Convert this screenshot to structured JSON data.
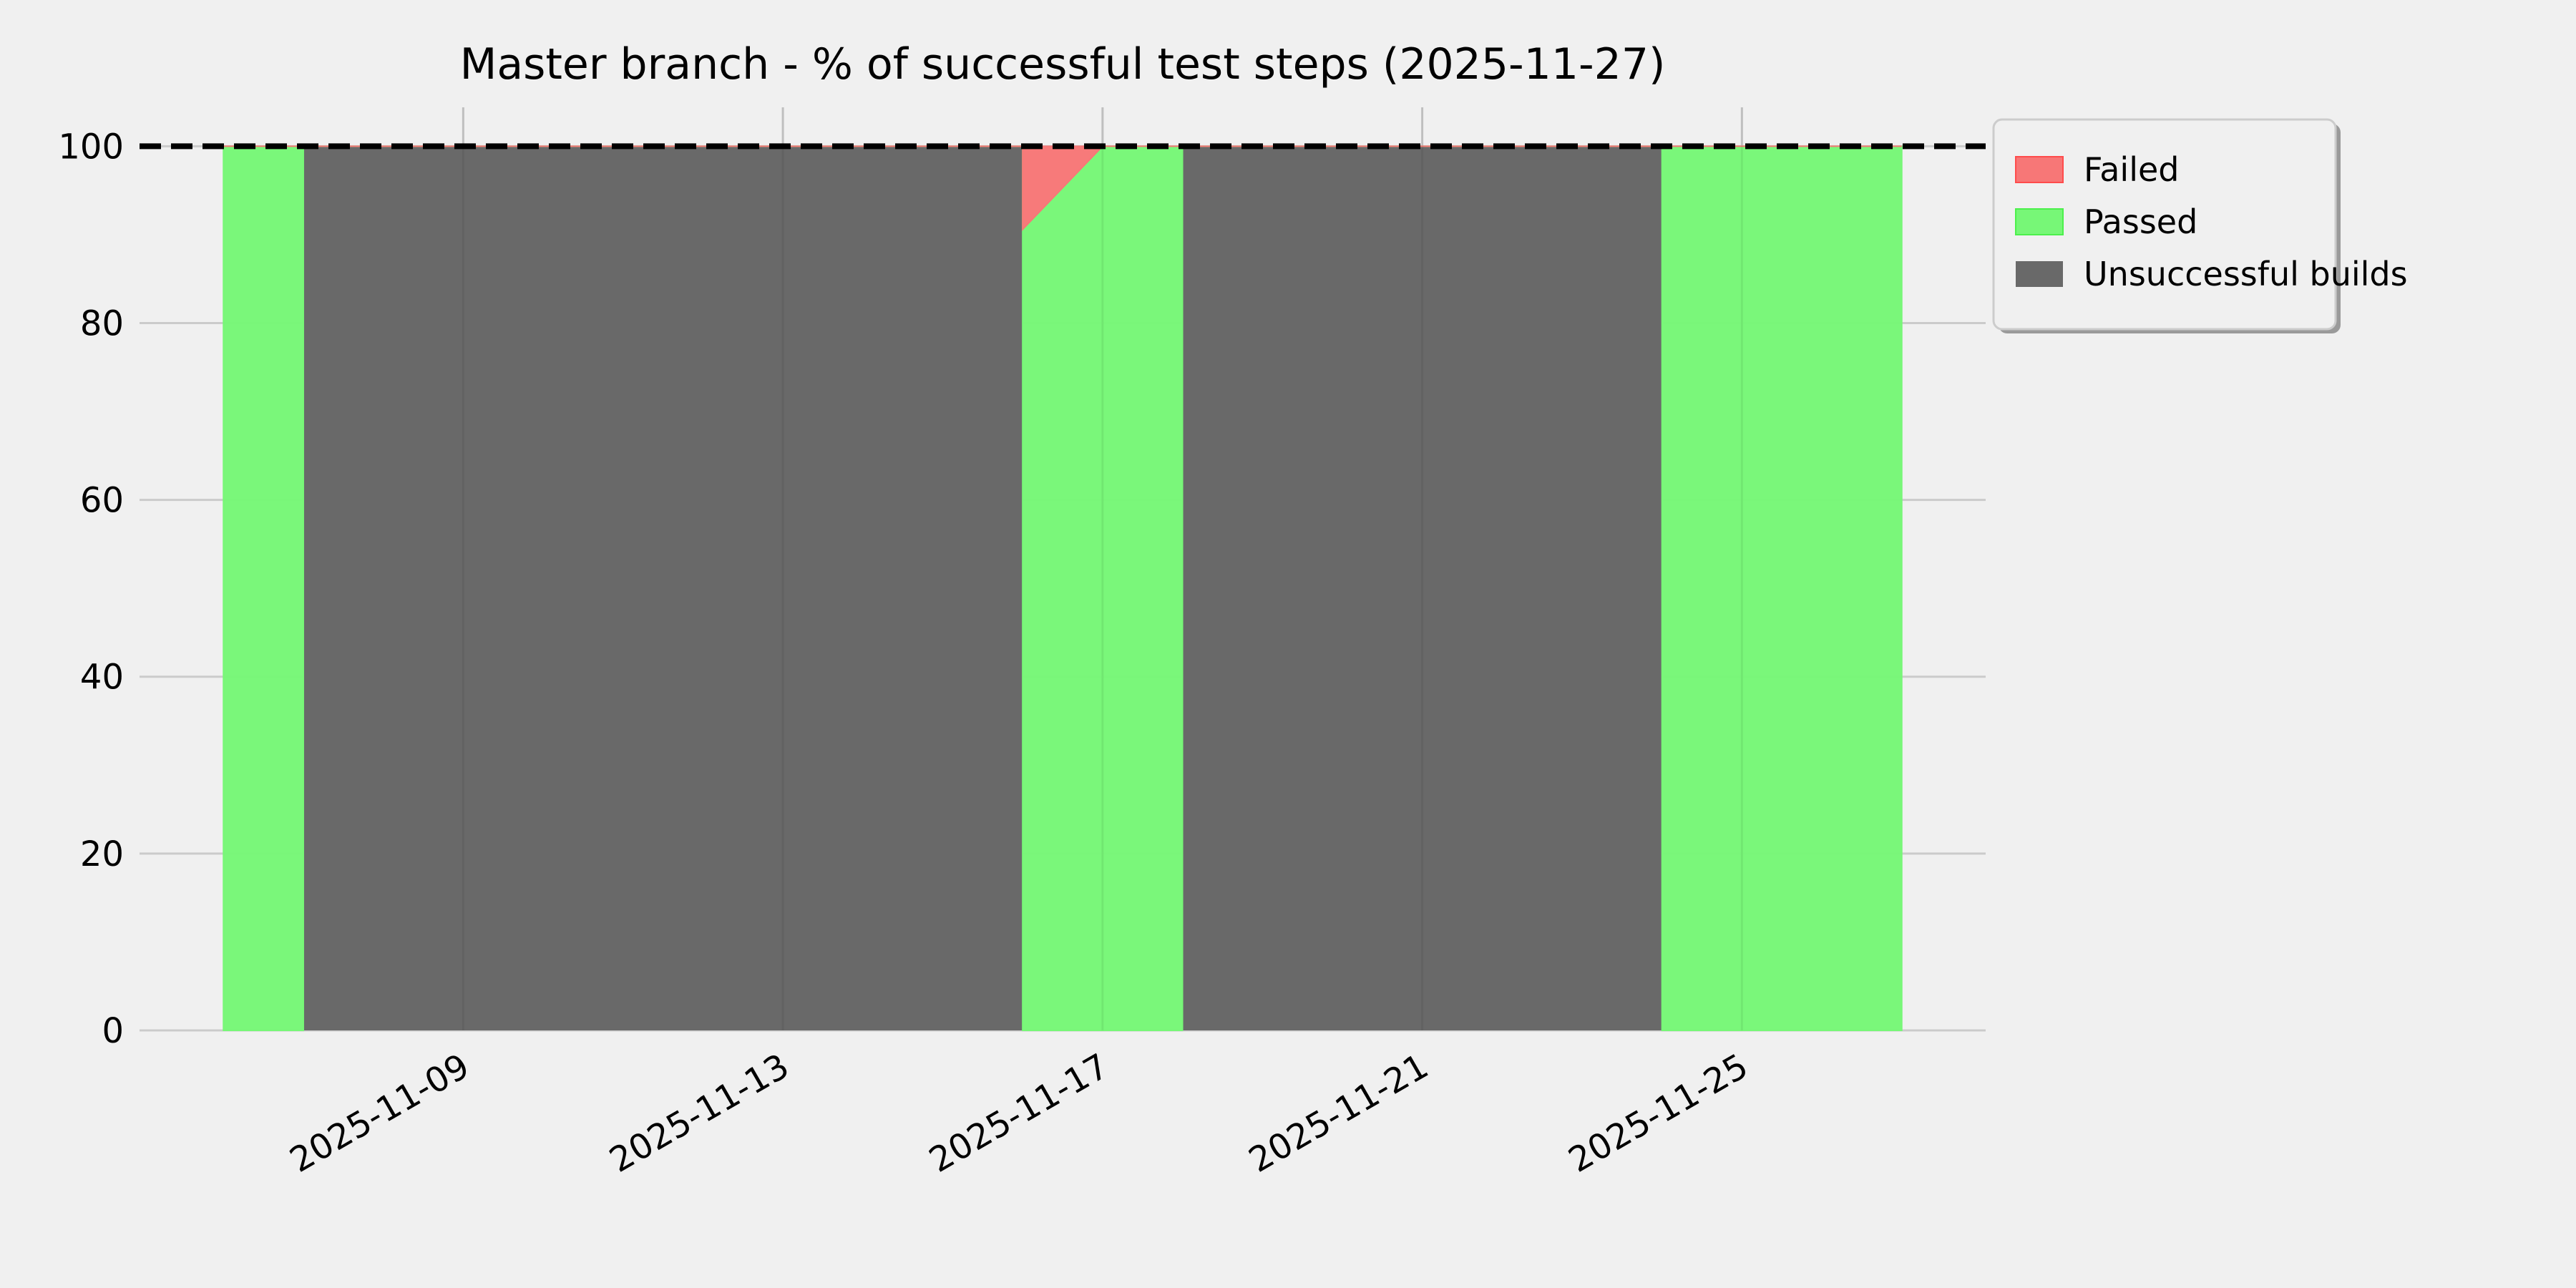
{
  "chart_data": {
    "type": "area",
    "stacked": true,
    "title": "Master branch - % of successful test steps (2025-11-27)",
    "xlabel": "",
    "ylabel": "",
    "ylim": [
      0,
      104.4
    ],
    "yticks": [
      0,
      20,
      40,
      60,
      80,
      100
    ],
    "xticks": [
      "2025-11-09",
      "2025-11-13",
      "2025-11-17",
      "2025-11-21",
      "2025-11-25"
    ],
    "grid": true,
    "legend_position": "outside-top-right",
    "reference_line": {
      "y": 100,
      "style": "dashed",
      "color": "#000000"
    },
    "x": [
      "2025-11-06",
      "2025-11-07",
      "2025-11-07",
      "2025-11-16",
      "2025-11-16",
      "2025-11-17",
      "2025-11-18",
      "2025-11-18",
      "2025-11-24",
      "2025-11-24",
      "2025-11-27"
    ],
    "series": [
      {
        "name": "Unsuccessful builds",
        "color": "#696969",
        "values": [
          0,
          0,
          100,
          100,
          0,
          0,
          0,
          100,
          100,
          0,
          0
        ]
      },
      {
        "name": "Passed",
        "color": "#77f777",
        "values": [
          100,
          100,
          0,
          0,
          90.6,
          100,
          100,
          0,
          0,
          100,
          100
        ]
      },
      {
        "name": "Failed",
        "color": "#f77777",
        "values": [
          0,
          0,
          0,
          0,
          9.4,
          0,
          0,
          0,
          0,
          0,
          0
        ]
      }
    ],
    "legend": [
      "Failed",
      "Passed",
      "Unsuccessful builds"
    ]
  }
}
